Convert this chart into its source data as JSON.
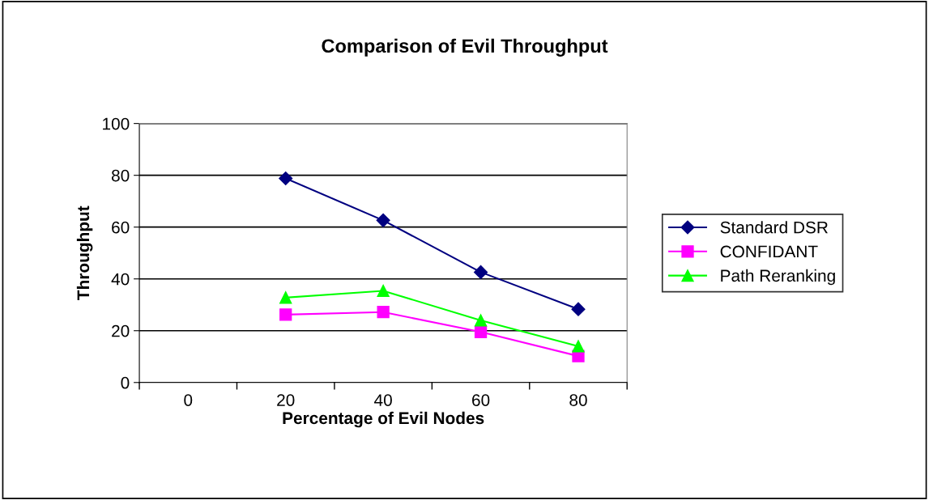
{
  "chart_data": {
    "type": "line",
    "title": "Comparison of Evil Throughput",
    "xlabel": "Percentage of Evil Nodes",
    "ylabel": "Throughput",
    "categories": [
      "0",
      "20",
      "40",
      "60",
      "80"
    ],
    "series": [
      {
        "name": "Standard DSR",
        "color": "#000080",
        "marker": "diamond",
        "values": [
          null,
          78.8,
          62.6,
          42.6,
          28.3
        ]
      },
      {
        "name": "CONFIDANT",
        "color": "#ff00ff",
        "marker": "square",
        "values": [
          null,
          26.2,
          27.2,
          19.5,
          10.2
        ]
      },
      {
        "name": "Path Reranking",
        "color": "#00ff00",
        "marker": "triangle",
        "values": [
          null,
          32.8,
          35.4,
          24,
          14
        ]
      }
    ],
    "ylim": [
      0,
      100
    ],
    "yticks": [
      0,
      20,
      40,
      60,
      80,
      100
    ],
    "grid": "y",
    "legend": "right"
  }
}
